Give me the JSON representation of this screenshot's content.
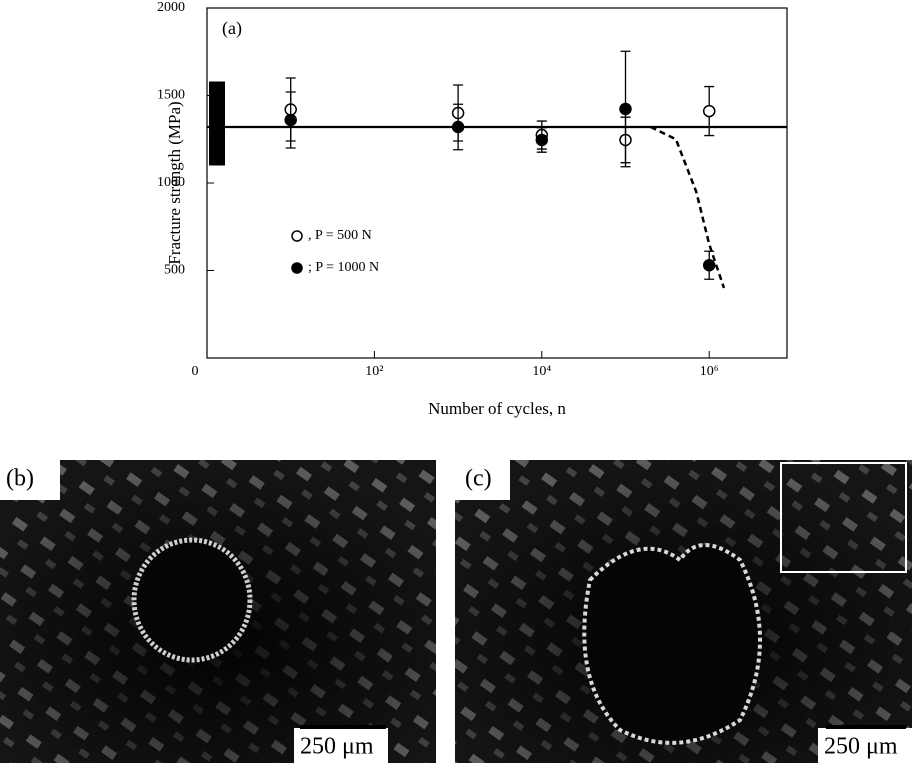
{
  "chart_data": {
    "type": "scatter",
    "annotation": "(a)",
    "y_label": "Fracture strength (MPa)",
    "x_label": "Number of cycles, n",
    "xscale": "log",
    "xlim": [
      1,
      8500000
    ],
    "ylim": [
      0,
      2000
    ],
    "xticks": [
      {
        "value": 1,
        "label": "0"
      },
      {
        "value": 100,
        "label": "10²"
      },
      {
        "value": 10000,
        "label": "10⁴"
      },
      {
        "value": 1000000,
        "label": "10⁶"
      }
    ],
    "yticks": [
      500,
      1000,
      1500,
      2000
    ],
    "x": [
      10,
      1000,
      10000,
      100000,
      1000000
    ],
    "series": [
      {
        "name": ", P = 500 N",
        "marker": "open",
        "color": "#000000",
        "values": [
          1420,
          1400,
          1274,
          1246,
          1411
        ],
        "errors": [
          180,
          160,
          80,
          130,
          140
        ]
      },
      {
        "name": "; P = 1000 N",
        "marker": "filled",
        "color": "#000000",
        "values": [
          1360,
          1320,
          1246,
          1423,
          530
        ],
        "errors": [
          160,
          130,
          70,
          330,
          80
        ]
      }
    ],
    "reference_line": 1320,
    "static_range": [
      1100,
      1580
    ],
    "dashed_curve": {
      "x": [
        200000,
        400000,
        700000,
        1000000,
        1500000
      ],
      "values": [
        1320,
        1250,
        950,
        650,
        400
      ]
    }
  },
  "panels": [
    {
      "label": "(b)",
      "scale_bar": "250 μm"
    },
    {
      "label": "(c)",
      "scale_bar": "250 μm"
    }
  ]
}
